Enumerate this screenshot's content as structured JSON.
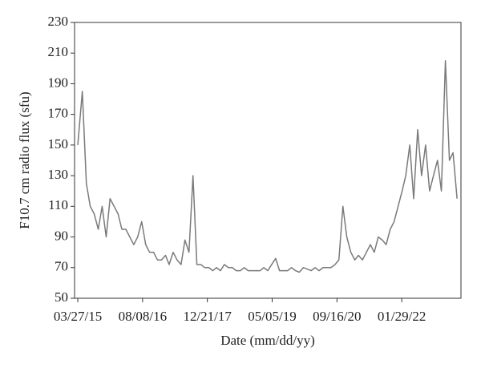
{
  "chart_data": {
    "type": "line",
    "xlabel": "Date (mm/dd/yy)",
    "ylabel": "F10.7 cm radio flux (sfu)",
    "color": "#7a7a7a",
    "x": [
      "03/27/15",
      "05/01/15",
      "06/01/15",
      "07/01/15",
      "08/01/15",
      "09/01/15",
      "10/01/15",
      "11/01/15",
      "12/01/15",
      "01/01/16",
      "02/01/16",
      "03/01/16",
      "04/01/16",
      "05/01/16",
      "06/01/16",
      "07/01/16",
      "08/01/16",
      "09/01/16",
      "10/01/16",
      "11/01/16",
      "12/01/16",
      "01/01/17",
      "02/01/17",
      "03/01/17",
      "04/01/17",
      "05/01/17",
      "06/01/17",
      "07/01/17",
      "08/01/17",
      "09/01/17",
      "10/01/17",
      "11/01/17",
      "12/01/17",
      "01/01/18",
      "02/01/18",
      "03/01/18",
      "04/01/18",
      "05/01/18",
      "06/01/18",
      "07/01/18",
      "08/01/18",
      "09/01/18",
      "10/01/18",
      "11/01/18",
      "12/01/18",
      "01/01/19",
      "02/01/19",
      "03/01/19",
      "04/01/19",
      "05/01/19",
      "06/01/19",
      "07/01/19",
      "08/01/19",
      "09/01/19",
      "10/01/19",
      "11/01/19",
      "12/01/19",
      "01/01/20",
      "02/01/20",
      "03/01/20",
      "04/01/20",
      "05/01/20",
      "06/01/20",
      "07/01/20",
      "08/01/20",
      "09/01/20",
      "10/01/20",
      "11/01/20",
      "12/01/20",
      "01/01/21",
      "02/01/21",
      "03/01/21",
      "04/01/21",
      "05/01/21",
      "06/01/21",
      "07/01/21",
      "08/01/21",
      "09/01/21",
      "10/01/21",
      "11/01/21",
      "12/01/21",
      "01/01/22",
      "02/01/22",
      "03/01/22",
      "04/01/22",
      "05/01/22",
      "06/01/22",
      "07/01/22",
      "08/01/22",
      "09/01/22",
      "10/01/22",
      "11/01/22",
      "12/01/22",
      "01/01/23",
      "02/01/23",
      "03/01/23",
      "04/01/23"
    ],
    "values": [
      150,
      185,
      125,
      110,
      105,
      95,
      110,
      90,
      115,
      110,
      105,
      95,
      95,
      90,
      85,
      90,
      100,
      85,
      80,
      80,
      75,
      75,
      78,
      72,
      80,
      75,
      72,
      88,
      80,
      130,
      72,
      72,
      70,
      70,
      68,
      70,
      68,
      72,
      70,
      70,
      68,
      68,
      70,
      68,
      68,
      68,
      68,
      70,
      68,
      72,
      76,
      68,
      68,
      68,
      70,
      68,
      67,
      70,
      69,
      68,
      70,
      68,
      70,
      70,
      70,
      72,
      75,
      110,
      90,
      80,
      75,
      78,
      75,
      80,
      85,
      80,
      90,
      88,
      85,
      95,
      100,
      110,
      120,
      130,
      150,
      115,
      160,
      130,
      150,
      120,
      130,
      140,
      120,
      205,
      140,
      145,
      115
    ],
    "xlim": [
      "03/02/15",
      "05/01/23"
    ],
    "xticks": [
      "03/27/15",
      "08/08/16",
      "12/21/17",
      "05/05/19",
      "09/16/20",
      "01/29/22"
    ],
    "ylim": [
      50,
      230
    ],
    "yticks": [
      50,
      70,
      90,
      110,
      130,
      150,
      170,
      190,
      210,
      230
    ]
  }
}
